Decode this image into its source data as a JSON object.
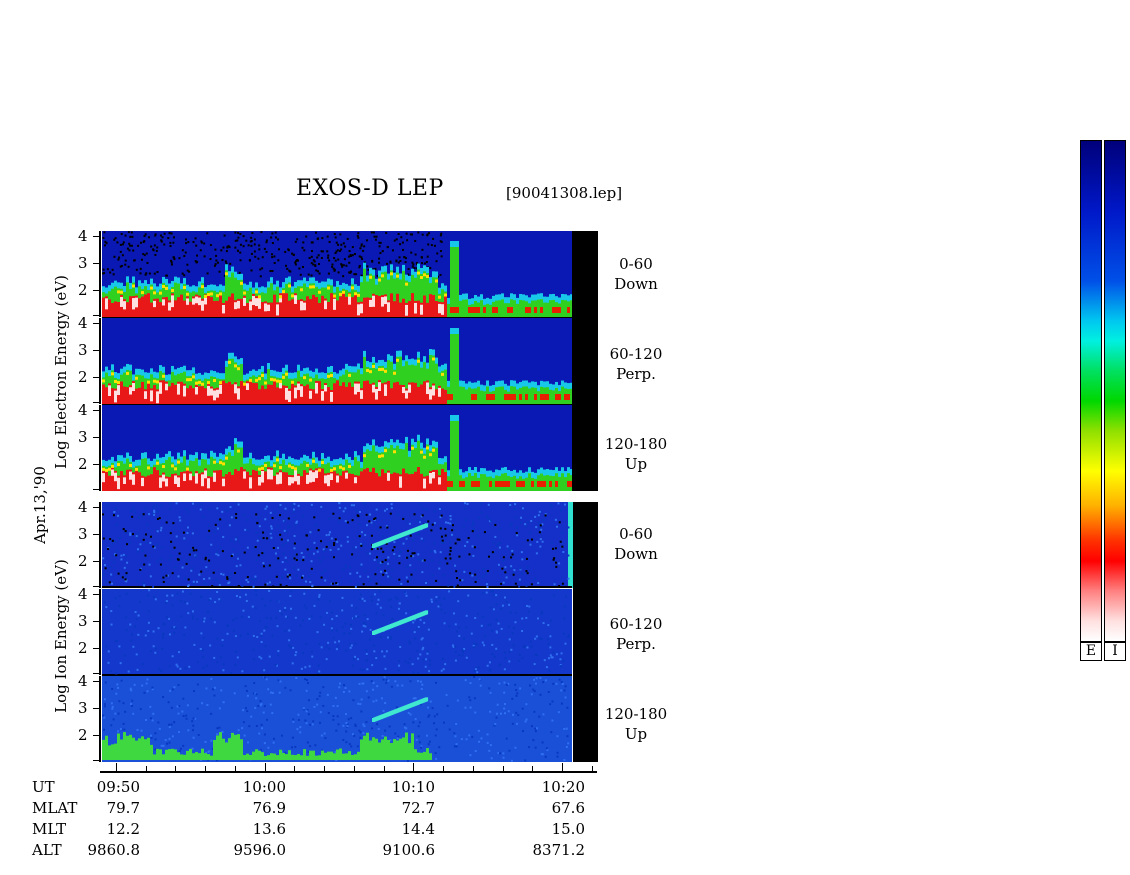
{
  "title": "EXOS-D LEP",
  "file": "[90041308.lep]",
  "date_label": "Apr.13,'90",
  "chart_data": {
    "type": "heatmap",
    "electron_axis_label": "Log  Electron  Energy (eV)",
    "ion_axis_label": "Log  Ion  Energy (eV)",
    "yticks": [
      "4",
      "3",
      "2"
    ],
    "panels": [
      {
        "species": "Electron",
        "angle": "0-60",
        "direction": "Down"
      },
      {
        "species": "Electron",
        "angle": "60-120",
        "direction": "Perp."
      },
      {
        "species": "Electron",
        "angle": "120-180",
        "direction": "Up"
      },
      {
        "species": "Ion",
        "angle": "0-60",
        "direction": "Down"
      },
      {
        "species": "Ion",
        "angle": "60-120",
        "direction": "Perp."
      },
      {
        "species": "Ion",
        "angle": "120-180",
        "direction": "Up"
      }
    ],
    "x_ticks": [
      "09:50",
      "10:00",
      "10:10",
      "10:20"
    ],
    "orbit_table": {
      "rows": [
        {
          "label": "UT",
          "values": [
            "09:50",
            "10:00",
            "10:10",
            "10:20"
          ]
        },
        {
          "label": "MLAT",
          "values": [
            "79.7",
            "76.9",
            "72.7",
            "67.6"
          ]
        },
        {
          "label": "MLT",
          "values": [
            "12.2",
            "13.6",
            "14.4",
            "15.0"
          ]
        },
        {
          "label": "ALT",
          "values": [
            "9860.8",
            "9596.0",
            "9100.6",
            "8371.2"
          ]
        }
      ]
    },
    "colorbars": [
      {
        "label": "E"
      },
      {
        "label": "I"
      }
    ]
  }
}
